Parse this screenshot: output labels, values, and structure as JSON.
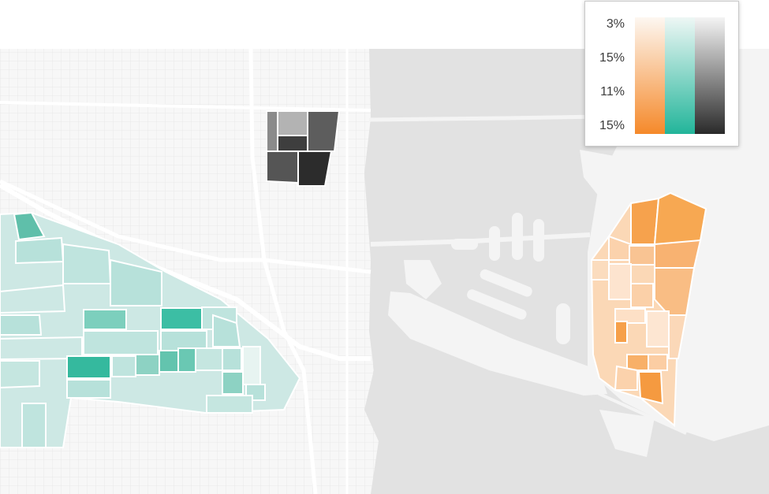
{
  "legend": {
    "labels": [
      "3%",
      "15%",
      "11%",
      "15%"
    ],
    "ramps": [
      {
        "name": "orange",
        "from": "#fdf7f1",
        "to": "#f5892a"
      },
      {
        "name": "teal",
        "from": "#eef7f5",
        "to": "#22b59a"
      },
      {
        "name": "gray",
        "from": "#f4f4f4",
        "to": "#2a2a2a"
      }
    ]
  },
  "colors": {
    "land": "#f7f7f7",
    "water": "#e2e2e2",
    "streets": "#ffffff"
  }
}
